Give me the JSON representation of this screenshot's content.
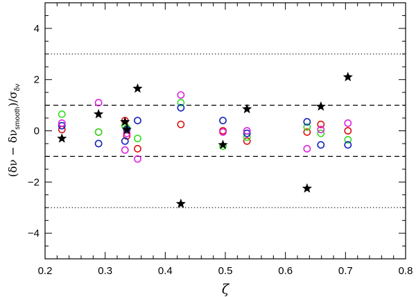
{
  "chart_data": {
    "type": "scatter",
    "xlabel": "ζ",
    "ylabel": "(δν − δν_smooth)/σ_δν",
    "xlim": [
      0.2,
      0.8
    ],
    "ylim": [
      -5,
      5
    ],
    "xticks": [
      0.2,
      0.3,
      0.4,
      0.5,
      0.6,
      0.7,
      0.8
    ],
    "xtick_labels": [
      "0.2",
      "0.3",
      "0.4",
      "0.5",
      "0.6",
      "0.7",
      "0.8"
    ],
    "yticks": [
      -4,
      -2,
      0,
      2,
      4
    ],
    "ytick_labels": [
      "−4",
      "−2",
      "0",
      "2",
      "4"
    ],
    "grid": false,
    "reference_lines": [
      {
        "y": 3,
        "style": "dotted"
      },
      {
        "y": 1,
        "style": "dashed"
      },
      {
        "y": -1,
        "style": "dashed"
      },
      {
        "y": -3,
        "style": "dotted"
      }
    ],
    "series": [
      {
        "marker": "star",
        "color": "#000000",
        "points": [
          [
            0.228,
            -0.3
          ],
          [
            0.289,
            0.65
          ],
          [
            0.333,
            0.35
          ],
          [
            0.336,
            0.05
          ],
          [
            0.354,
            1.65
          ],
          [
            0.426,
            -2.85
          ],
          [
            0.496,
            -0.55
          ],
          [
            0.536,
            0.85
          ],
          [
            0.636,
            -2.25
          ],
          [
            0.659,
            0.95
          ],
          [
            0.704,
            2.1
          ]
        ]
      },
      {
        "marker": "circle",
        "color": "#dd1111",
        "points": [
          [
            0.228,
            0.05
          ],
          [
            0.289,
            -0.05
          ],
          [
            0.333,
            0.4
          ],
          [
            0.336,
            -0.2
          ],
          [
            0.354,
            -0.7
          ],
          [
            0.426,
            0.25
          ],
          [
            0.496,
            0.0
          ],
          [
            0.536,
            -0.4
          ],
          [
            0.636,
            -0.05
          ],
          [
            0.659,
            0.25
          ],
          [
            0.704,
            0.0
          ]
        ]
      },
      {
        "marker": "circle",
        "color": "#33dd22",
        "points": [
          [
            0.228,
            0.65
          ],
          [
            0.289,
            -0.05
          ],
          [
            0.333,
            0.2
          ],
          [
            0.336,
            0.1
          ],
          [
            0.354,
            -0.3
          ],
          [
            0.426,
            1.1
          ],
          [
            0.496,
            -0.6
          ],
          [
            0.536,
            -0.25
          ],
          [
            0.636,
            0.15
          ],
          [
            0.659,
            -0.1
          ],
          [
            0.704,
            -0.35
          ]
        ]
      },
      {
        "marker": "circle",
        "color": "#1122bb",
        "points": [
          [
            0.228,
            0.2
          ],
          [
            0.289,
            -0.5
          ],
          [
            0.333,
            -0.4
          ],
          [
            0.336,
            0.05
          ],
          [
            0.354,
            0.4
          ],
          [
            0.426,
            0.9
          ],
          [
            0.496,
            0.4
          ],
          [
            0.536,
            -0.1
          ],
          [
            0.636,
            0.35
          ],
          [
            0.659,
            -0.55
          ],
          [
            0.704,
            -0.55
          ]
        ]
      },
      {
        "marker": "circle",
        "color": "#dd22dd",
        "points": [
          [
            0.228,
            0.3
          ],
          [
            0.289,
            1.1
          ],
          [
            0.333,
            -0.75
          ],
          [
            0.336,
            -0.1
          ],
          [
            0.354,
            -1.1
          ],
          [
            0.426,
            1.4
          ],
          [
            0.496,
            -0.05
          ],
          [
            0.536,
            0.0
          ],
          [
            0.636,
            -0.7
          ],
          [
            0.659,
            0.05
          ],
          [
            0.704,
            0.3
          ]
        ]
      }
    ]
  }
}
